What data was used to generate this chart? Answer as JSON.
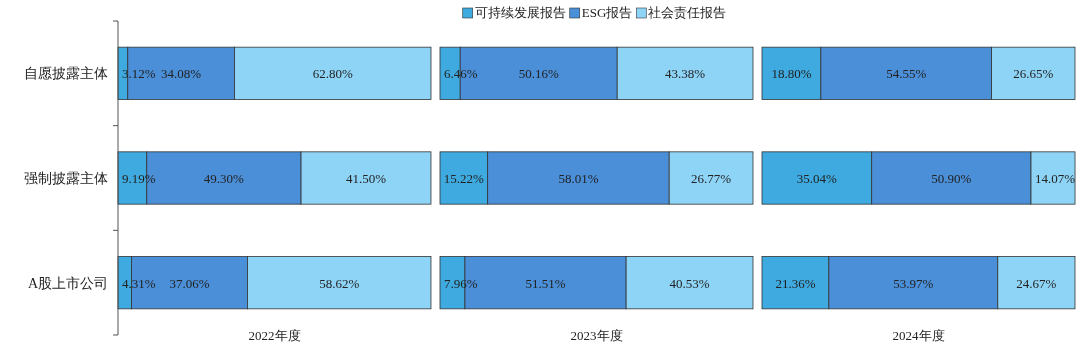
{
  "chart_data": [
    {
      "type": "bar",
      "orientation": "horizontal",
      "stacked": true,
      "xlabel": "2022年度",
      "categories": [
        "自愿披露主体",
        "强制披露主体",
        "A股上市公司"
      ],
      "xlim": [
        0,
        100
      ],
      "tick_labels": "y",
      "legend": "top",
      "series": [
        {
          "name": "可持续发展报告",
          "color": "#3eaadf",
          "values": [
            3.12,
            9.19,
            4.31
          ],
          "value_labels": [
            "3.12%",
            "9.19%",
            "4.31%"
          ]
        },
        {
          "name": "ESG报告",
          "color": "#4a8fd8",
          "values": [
            34.08,
            49.3,
            37.06
          ],
          "value_labels": [
            "34.08%",
            "49.30%",
            "37.06%"
          ]
        },
        {
          "name": "社会责任报告",
          "color": "#8ed4f6",
          "values": [
            62.8,
            41.5,
            58.62
          ],
          "value_labels": [
            "62.80%",
            "41.50%",
            "58.62%"
          ]
        }
      ]
    },
    {
      "type": "bar",
      "orientation": "horizontal",
      "stacked": true,
      "xlabel": "2023年度",
      "xlim": [
        0,
        100
      ],
      "tick_labels": false,
      "series": [
        {
          "color": "#3eaadf",
          "values": [
            6.46,
            15.22,
            7.96
          ],
          "value_labels": [
            "6.46%",
            "15.22%",
            "7.96%"
          ]
        },
        {
          "color": "#4a8fd8",
          "values": [
            50.16,
            58.01,
            51.51
          ],
          "value_labels": [
            "50.16%",
            "58.01%",
            "51.51%"
          ]
        },
        {
          "color": "#8ed4f6",
          "values": [
            43.38,
            26.77,
            40.53
          ],
          "value_labels": [
            "43.38%",
            "26.77%",
            "40.53%"
          ]
        }
      ]
    },
    {
      "type": "bar",
      "orientation": "horizontal",
      "stacked": true,
      "xlabel": "2024年度",
      "xlim": [
        0,
        100
      ],
      "tick_labels": false,
      "series": [
        {
          "color": "#3eaadf",
          "values": [
            18.8,
            35.04,
            21.36
          ],
          "value_labels": [
            "18.80%",
            "35.04%",
            "21.36%"
          ]
        },
        {
          "color": "#4a8fd8",
          "values": [
            54.55,
            50.9,
            53.97
          ],
          "value_labels": [
            "54.55%",
            "50.90%",
            "53.97%"
          ]
        },
        {
          "color": "#8ed4f6",
          "values": [
            26.65,
            14.07,
            24.67
          ],
          "value_labels": [
            "26.65%",
            "14.07%",
            "24.67%"
          ]
        }
      ]
    }
  ]
}
